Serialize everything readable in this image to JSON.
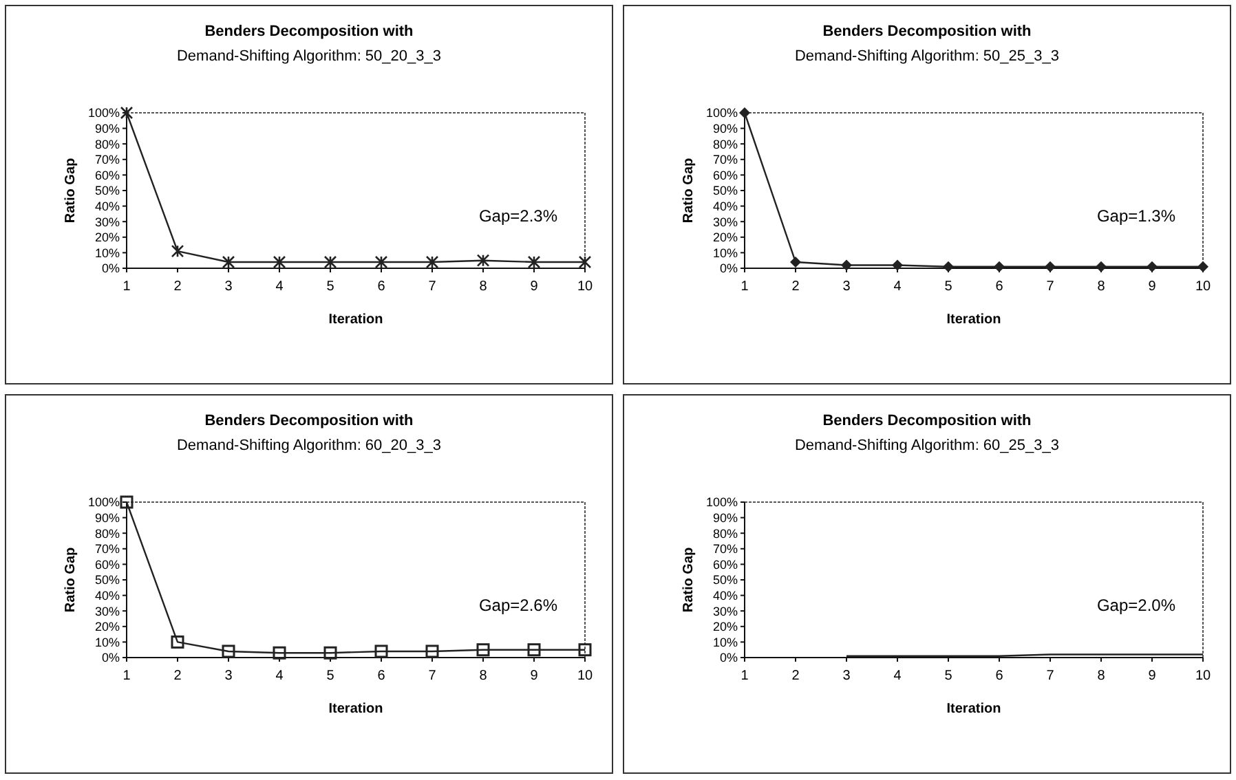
{
  "chart_data": [
    {
      "type": "line",
      "title": "Benders Decomposition with",
      "subtitle": "Demand-Shifting Algorithm: 50_20_3_3",
      "xlabel": "Iteration",
      "ylabel": "Ratio Gap",
      "annotations": [
        "Gap=2.3%"
      ],
      "x": [
        1,
        2,
        3,
        4,
        5,
        6,
        7,
        8,
        9,
        10
      ],
      "xlim": [
        1,
        10
      ],
      "xticks": [
        1,
        2,
        3,
        4,
        5,
        6,
        7,
        8,
        9,
        10
      ],
      "ylim": [
        0,
        100
      ],
      "yticks": [
        {
          "value": 0,
          "label": "0%"
        },
        {
          "value": 10,
          "label": "10%"
        },
        {
          "value": 20,
          "label": "20%"
        },
        {
          "value": 30,
          "label": "30%"
        },
        {
          "value": 40,
          "label": "40%"
        },
        {
          "value": 50,
          "label": "50%"
        },
        {
          "value": 60,
          "label": "60%"
        },
        {
          "value": 70,
          "label": "70%"
        },
        {
          "value": 80,
          "label": "80%"
        },
        {
          "value": 90,
          "label": "90%"
        },
        {
          "value": 100,
          "label": "100%"
        }
      ],
      "marker": "cross",
      "grid": false,
      "series": [
        {
          "color": "#222222",
          "values": [
            100,
            11,
            4,
            4,
            4,
            4,
            4,
            5,
            4,
            4
          ]
        }
      ]
    },
    {
      "type": "line",
      "title": "Benders Decomposition with",
      "subtitle": "Demand-Shifting Algorithm: 50_25_3_3",
      "xlabel": "Iteration",
      "ylabel": "Ratio Gap",
      "annotations": [
        "Gap=1.3%"
      ],
      "x": [
        1,
        2,
        3,
        4,
        5,
        6,
        7,
        8,
        9,
        10
      ],
      "xlim": [
        1,
        10
      ],
      "xticks": [
        1,
        2,
        3,
        4,
        5,
        6,
        7,
        8,
        9,
        10
      ],
      "ylim": [
        0,
        100
      ],
      "yticks": [
        {
          "value": 0,
          "label": "0%"
        },
        {
          "value": 10,
          "label": "10%"
        },
        {
          "value": 20,
          "label": "20%"
        },
        {
          "value": 30,
          "label": "30%"
        },
        {
          "value": 40,
          "label": "40%"
        },
        {
          "value": 50,
          "label": "50%"
        },
        {
          "value": 60,
          "label": "60%"
        },
        {
          "value": 70,
          "label": "70%"
        },
        {
          "value": 80,
          "label": "80%"
        },
        {
          "value": 90,
          "label": "90%"
        },
        {
          "value": 100,
          "label": "100%"
        }
      ],
      "marker": "diamond",
      "grid": false,
      "series": [
        {
          "color": "#222222",
          "values": [
            100,
            4,
            2,
            2,
            1,
            1,
            1,
            1,
            1,
            1
          ]
        }
      ]
    },
    {
      "type": "line",
      "title": "Benders Decomposition with",
      "subtitle": "Demand-Shifting Algorithm: 60_20_3_3",
      "xlabel": "Iteration",
      "ylabel": "Ratio Gap",
      "annotations": [
        "Gap=2.6%"
      ],
      "x": [
        1,
        2,
        3,
        4,
        5,
        6,
        7,
        8,
        9,
        10
      ],
      "xlim": [
        1,
        10
      ],
      "xticks": [
        1,
        2,
        3,
        4,
        5,
        6,
        7,
        8,
        9,
        10
      ],
      "ylim": [
        0,
        100
      ],
      "yticks": [
        {
          "value": 0,
          "label": "0%"
        },
        {
          "value": 10,
          "label": "10%"
        },
        {
          "value": 20,
          "label": "20%"
        },
        {
          "value": 30,
          "label": "30%"
        },
        {
          "value": 40,
          "label": "40%"
        },
        {
          "value": 50,
          "label": "50%"
        },
        {
          "value": 60,
          "label": "60%"
        },
        {
          "value": 70,
          "label": "70%"
        },
        {
          "value": 80,
          "label": "80%"
        },
        {
          "value": 90,
          "label": "90%"
        },
        {
          "value": 100,
          "label": "100%"
        }
      ],
      "marker": "square",
      "grid": false,
      "series": [
        {
          "color": "#222222",
          "values": [
            100,
            10,
            4,
            3,
            3,
            4,
            4,
            5,
            5,
            5
          ]
        }
      ]
    },
    {
      "type": "line",
      "title": "Benders Decomposition with",
      "subtitle": "Demand-Shifting Algorithm: 60_25_3_3",
      "xlabel": "Iteration",
      "ylabel": "Ratio Gap",
      "annotations": [
        "Gap=2.0%"
      ],
      "xlim": [
        1,
        10
      ],
      "xticks": [
        1,
        2,
        3,
        4,
        5,
        6,
        7,
        8,
        9,
        10
      ],
      "ylim": [
        0,
        100
      ],
      "yticks": [
        {
          "value": 0,
          "label": "0%"
        },
        {
          "value": 10,
          "label": "10%"
        },
        {
          "value": 20,
          "label": "20%"
        },
        {
          "value": 30,
          "label": "30%"
        },
        {
          "value": 40,
          "label": "40%"
        },
        {
          "value": 50,
          "label": "50%"
        },
        {
          "value": 60,
          "label": "60%"
        },
        {
          "value": 70,
          "label": "70%"
        },
        {
          "value": 80,
          "label": "80%"
        },
        {
          "value": 90,
          "label": "90%"
        },
        {
          "value": 100,
          "label": "100%"
        }
      ],
      "marker": "none",
      "grid": false,
      "series": [
        {
          "color": "#222222",
          "x": [
            3,
            4,
            5,
            6,
            7,
            8,
            9,
            10
          ],
          "values": [
            1,
            1,
            1,
            1,
            2,
            2,
            2,
            2
          ]
        }
      ]
    }
  ]
}
